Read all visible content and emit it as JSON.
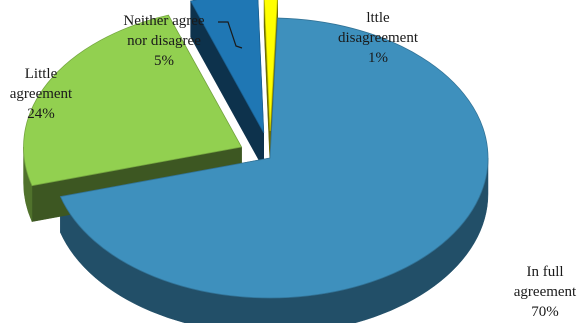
{
  "chart_data": {
    "type": "pie",
    "style": "3d-exploded",
    "title": "",
    "slices": [
      {
        "label": "In full agreement",
        "label_lines": [
          "In full",
          "agreement"
        ],
        "value": 70,
        "value_label": "70%",
        "color": "#3e90bd"
      },
      {
        "label": "Little agreement",
        "label_lines": [
          "Little",
          "agreement"
        ],
        "value": 24,
        "value_label": "24%",
        "color": "#92d050"
      },
      {
        "label": "Neither agree nor disagree",
        "label_lines": [
          "Neither agree",
          "nor disagree"
        ],
        "value": 5,
        "value_label": "5%",
        "color": "#1f77b4"
      },
      {
        "label": "lttle disagreement",
        "label_lines": [
          "lttle",
          "disagreement"
        ],
        "value": 1,
        "value_label": "1%",
        "color": "#ffff00"
      }
    ]
  }
}
